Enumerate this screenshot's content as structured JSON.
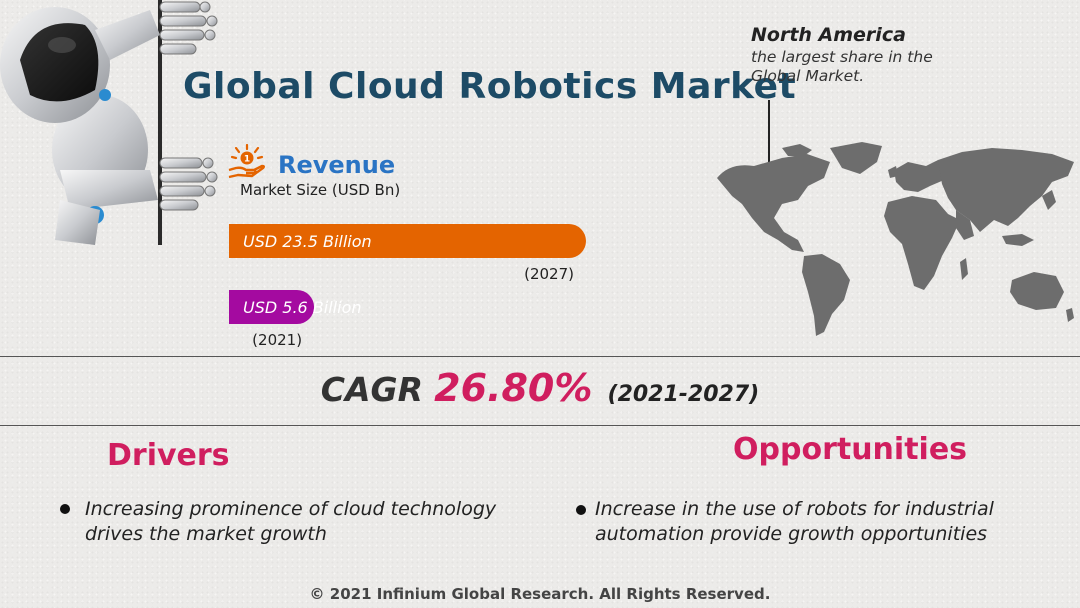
{
  "title": "Global Cloud Robotics Market",
  "revenue": {
    "label": "Revenue",
    "subtitle": "Market Size (USD Bn)",
    "icon": "hand-coin-icon"
  },
  "chart_data": {
    "type": "bar",
    "orientation": "horizontal",
    "categories": [
      "(2027)",
      "(2021)"
    ],
    "values": [
      23.5,
      5.6
    ],
    "value_labels": [
      "USD 23.5 Billion",
      "USD 5.6 Billion"
    ],
    "colors": [
      "#e46400",
      "#a40aa0"
    ],
    "ylabel": "Market Size (USD Bn)"
  },
  "region": {
    "title": "North America",
    "subtitle": "the largest share in the Global Market."
  },
  "cagr": {
    "label": "CAGR",
    "value": "26.80%",
    "period": "(2021-2027)"
  },
  "drivers": {
    "title": "Drivers",
    "items": [
      "Increasing prominence of cloud technology drives the market growth"
    ]
  },
  "opportunities": {
    "title": "Opportunities",
    "items": [
      "Increase in the use of robots for industrial automation provide growth opportunities"
    ]
  },
  "footer": "© 2021 Infinium Global Research. All Rights Reserved.",
  "colors": {
    "title": "#1d4b66",
    "accent": "#d01e5f",
    "revenue": "#2a74c4"
  }
}
